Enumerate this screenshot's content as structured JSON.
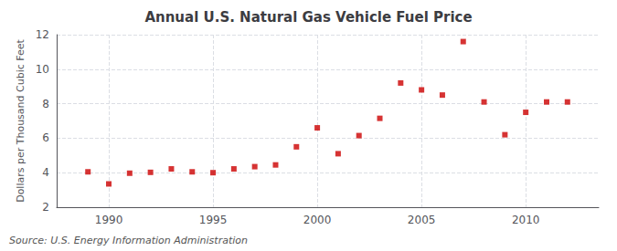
{
  "chart_data": {
    "type": "scatter",
    "title": "Annual U.S. Natural Gas Vehicle Fuel Price",
    "ylabel": "Dollars per Thousand Cubic Feet",
    "source": "Source: U.S. Energy Information Administration",
    "x": [
      1989,
      1990,
      1991,
      1992,
      1993,
      1994,
      1995,
      1996,
      1997,
      1998,
      1999,
      2000,
      2001,
      2002,
      2003,
      2004,
      2005,
      2006,
      2007,
      2008,
      2009,
      2010,
      2011,
      2012
    ],
    "values": [
      4.05,
      3.35,
      3.97,
      4.02,
      4.22,
      4.05,
      4.0,
      4.22,
      4.35,
      4.45,
      5.5,
      6.6,
      5.1,
      6.15,
      7.15,
      9.2,
      8.8,
      8.5,
      11.6,
      8.1,
      6.2,
      7.5,
      8.1,
      8.1
    ],
    "color": "#cc0000",
    "marker": "square",
    "xlim": [
      1987.5,
      2013.5
    ],
    "xticks": [
      1990,
      1995,
      2000,
      2005,
      2010
    ],
    "ylim": [
      2,
      12
    ],
    "yticks": [
      2,
      4,
      6,
      8,
      10,
      12
    ],
    "grid": true
  }
}
